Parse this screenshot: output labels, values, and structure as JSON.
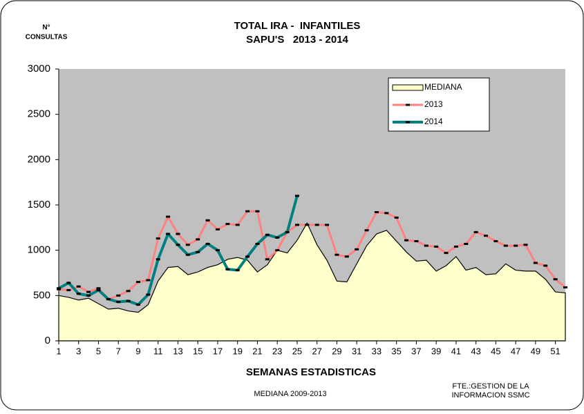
{
  "chart_data": {
    "type": "line",
    "title": "TOTAL IRA -  INFANTILES",
    "subtitle": "SAPU'S   2013 - 2014",
    "ylabel": [
      "N°",
      "CONSULTAS"
    ],
    "xlabel": "SEMANAS ESTADISTICAS",
    "annotations": [
      "MEDIANA 2009-2013",
      "FTE.:GESTION DE LA",
      "INFORMACION SSMC"
    ],
    "x": [
      1,
      2,
      3,
      4,
      5,
      6,
      7,
      8,
      9,
      10,
      11,
      12,
      13,
      14,
      15,
      16,
      17,
      18,
      19,
      20,
      21,
      22,
      23,
      24,
      25,
      26,
      27,
      28,
      29,
      30,
      31,
      32,
      33,
      34,
      35,
      36,
      37,
      38,
      39,
      40,
      41,
      42,
      43,
      44,
      45,
      46,
      47,
      48,
      49,
      50,
      51,
      52
    ],
    "xlim": [
      1,
      52
    ],
    "xticks": [
      1,
      3,
      5,
      7,
      9,
      11,
      13,
      15,
      17,
      19,
      21,
      23,
      25,
      27,
      29,
      31,
      33,
      35,
      37,
      39,
      41,
      43,
      45,
      47,
      49,
      51
    ],
    "ylim": [
      0,
      3000
    ],
    "yticks": [
      0,
      500,
      1000,
      1500,
      2000,
      2500,
      3000
    ],
    "legend": "upper right",
    "series": [
      {
        "name": "MEDIANA",
        "kind": "area",
        "color": "#ffffcc",
        "values": [
          500,
          480,
          450,
          470,
          410,
          350,
          360,
          330,
          315,
          400,
          660,
          810,
          820,
          730,
          760,
          810,
          840,
          900,
          920,
          890,
          760,
          840,
          1000,
          970,
          1110,
          1300,
          1060,
          890,
          660,
          650,
          850,
          1050,
          1180,
          1220,
          1100,
          980,
          880,
          890,
          770,
          830,
          930,
          780,
          810,
          730,
          740,
          850,
          780,
          770,
          770,
          680,
          540,
          530
        ]
      },
      {
        "name": "2013",
        "kind": "line",
        "color": "#ff8080",
        "values": [
          570,
          560,
          600,
          540,
          580,
          460,
          500,
          550,
          650,
          670,
          1130,
          1370,
          1180,
          1060,
          1120,
          1330,
          1230,
          1290,
          1280,
          1430,
          1430,
          900,
          1000,
          1200,
          1280,
          1280,
          1280,
          1280,
          950,
          930,
          1010,
          1220,
          1420,
          1410,
          1360,
          1110,
          1100,
          1050,
          1040,
          970,
          1040,
          1070,
          1200,
          1160,
          1100,
          1050,
          1050,
          1060,
          860,
          830,
          680,
          590
        ]
      },
      {
        "name": "2014",
        "kind": "line",
        "color": "#008080",
        "values": [
          580,
          640,
          520,
          500,
          560,
          460,
          430,
          440,
          400,
          510,
          900,
          1180,
          1060,
          950,
          980,
          1070,
          1000,
          790,
          780,
          930,
          1070,
          1170,
          1140,
          1200,
          1600,
          null,
          null,
          null,
          null,
          null,
          null,
          null,
          null,
          null,
          null,
          null,
          null,
          null,
          null,
          null,
          null,
          null,
          null,
          null,
          null,
          null,
          null,
          null,
          null,
          null,
          null,
          null
        ]
      }
    ]
  }
}
